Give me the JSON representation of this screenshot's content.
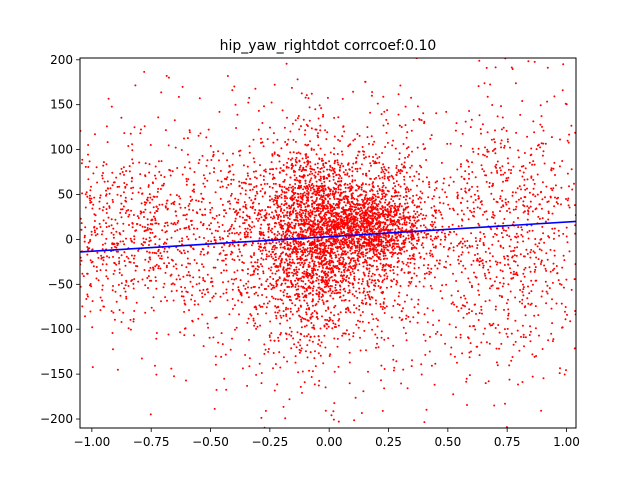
{
  "chart_data": {
    "type": "scatter",
    "title": "hip_yaw_rightdot corrcoef:0.10",
    "xlabel": "",
    "ylabel": "",
    "xlim": [
      -1.05,
      1.04
    ],
    "ylim": [
      -210,
      202
    ],
    "x_ticks": [
      -1.0,
      -0.75,
      -0.5,
      -0.25,
      0.0,
      0.25,
      0.5,
      0.75,
      1.0
    ],
    "x_tick_labels": [
      "−1.00",
      "−0.75",
      "−0.50",
      "−0.25",
      "0.00",
      "0.25",
      "0.50",
      "0.75",
      "1.00"
    ],
    "y_ticks": [
      -200,
      -150,
      -100,
      -50,
      0,
      50,
      100,
      150,
      200
    ],
    "y_tick_labels": [
      "−200",
      "−150",
      "−100",
      "−50",
      "0",
      "50",
      "100",
      "150",
      "200"
    ],
    "grid": false,
    "legend": "none",
    "scatter_color": "#ff0000",
    "fit_color": "#0000ff",
    "fit_line": {
      "x": [
        -1.05,
        1.04
      ],
      "y": [
        -14,
        20
      ]
    },
    "clusters": [
      {
        "cx": 0.0,
        "cy": 10,
        "sx": 0.2,
        "sy": 45,
        "n": 2000
      },
      {
        "cx": 0.15,
        "cy": 15,
        "sx": 0.12,
        "sy": 20,
        "n": 800
      },
      {
        "cx": -0.1,
        "cy": -20,
        "sx": 0.08,
        "sy": 60,
        "n": 500
      },
      {
        "cx": 0.0,
        "cy": 0,
        "sx": 0.55,
        "sy": 60,
        "n": 1500
      },
      {
        "cx": -0.85,
        "cy": 10,
        "sx": 0.18,
        "sy": 45,
        "n": 500
      },
      {
        "cx": 0.8,
        "cy": 10,
        "sx": 0.15,
        "sy": 80,
        "n": 500
      },
      {
        "cx": 0.0,
        "cy": 0,
        "sx": 0.5,
        "sy": 120,
        "n": 600
      }
    ]
  }
}
